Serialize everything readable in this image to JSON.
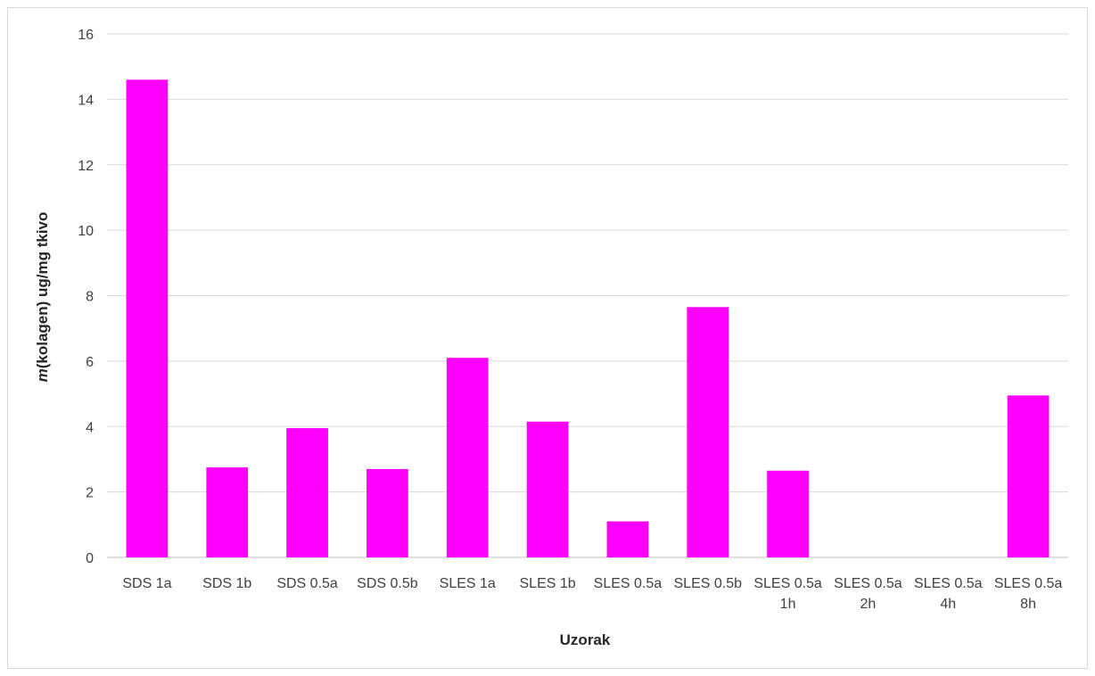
{
  "chart_data": {
    "type": "bar",
    "title": "",
    "xlabel": "Uzorak",
    "ylabel_italic": "m",
    "ylabel_rest": "(kolagen) ug/mg tkivo",
    "ylim": [
      0,
      16
    ],
    "yticks": [
      0,
      2,
      4,
      6,
      8,
      10,
      12,
      14,
      16
    ],
    "grid": true,
    "bar_color": "#ff00ff",
    "categories": [
      [
        "SDS 1a"
      ],
      [
        "SDS 1b"
      ],
      [
        "SDS 0.5a"
      ],
      [
        "SDS 0.5b"
      ],
      [
        "SLES 1a"
      ],
      [
        "SLES 1b"
      ],
      [
        "SLES 0.5a"
      ],
      [
        "SLES 0.5b"
      ],
      [
        "SLES 0.5a",
        "1h"
      ],
      [
        "SLES 0.5a",
        "2h"
      ],
      [
        "SLES 0.5a",
        "4h"
      ],
      [
        "SLES 0.5a",
        "8h"
      ]
    ],
    "values": [
      14.6,
      2.75,
      3.95,
      2.7,
      6.1,
      4.15,
      1.1,
      7.65,
      2.65,
      0,
      0,
      4.95
    ]
  }
}
